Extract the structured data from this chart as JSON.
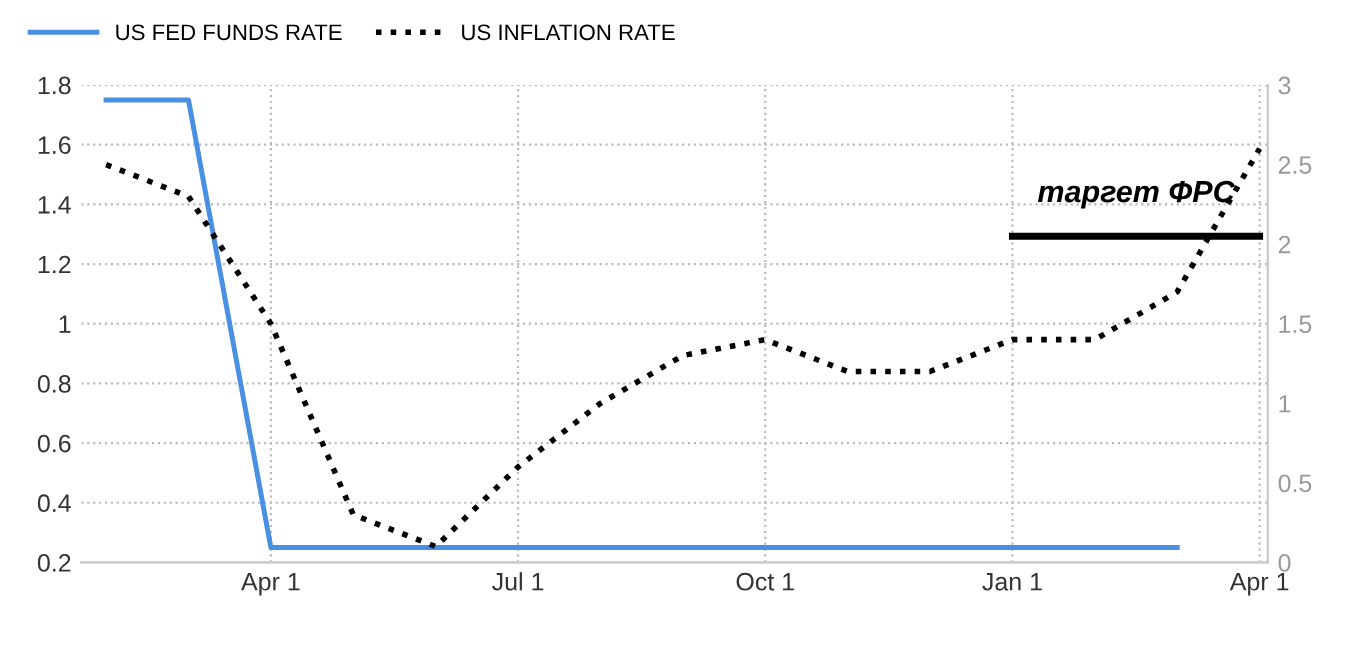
{
  "chart_data": {
    "type": "line",
    "legend": "top left",
    "grid": true,
    "categories": [
      null,
      null,
      "Apr 1",
      null,
      null,
      "Jul 1",
      null,
      null,
      "Oct 1",
      null,
      null,
      "Jan 1",
      null,
      null,
      "Apr 1"
    ],
    "series": [
      {
        "name": "US FED FUNDS RATE",
        "color": "#4a90e2",
        "line_style": "solid",
        "values": [
          1.75,
          1.75,
          0.25,
          0.25,
          0.25,
          0.25,
          0.25,
          0.25,
          0.25,
          0.25,
          0.25,
          0.25,
          0.25,
          0.25,
          null
        ]
      },
      {
        "name": "US INFLATION RATE",
        "color": "#000000",
        "line_style": "dotted",
        "axis": "y2",
        "values": [
          2.5,
          2.3,
          1.5,
          0.3,
          0.1,
          0.6,
          1.0,
          1.3,
          1.4,
          1.2,
          1.2,
          1.4,
          1.4,
          1.7,
          2.6
        ]
      },
      {
        "color": "#000000",
        "line_style": "solid",
        "axis": "y2",
        "values": [
          null,
          null,
          null,
          null,
          null,
          null,
          null,
          null,
          null,
          null,
          null,
          2.05,
          2.05,
          2.05,
          2.05
        ]
      }
    ],
    "annotations": [
      "таргет ФРС"
    ],
    "ylim": [
      0.2,
      1.8
    ],
    "yticks": [
      0.2,
      0.4,
      0.6,
      0.8,
      1,
      1.2,
      1.4,
      1.6,
      1.8
    ],
    "y2lim": [
      0,
      3
    ],
    "y2ticks": [
      0,
      0.5,
      1,
      1.5,
      2,
      2.5,
      3
    ]
  }
}
